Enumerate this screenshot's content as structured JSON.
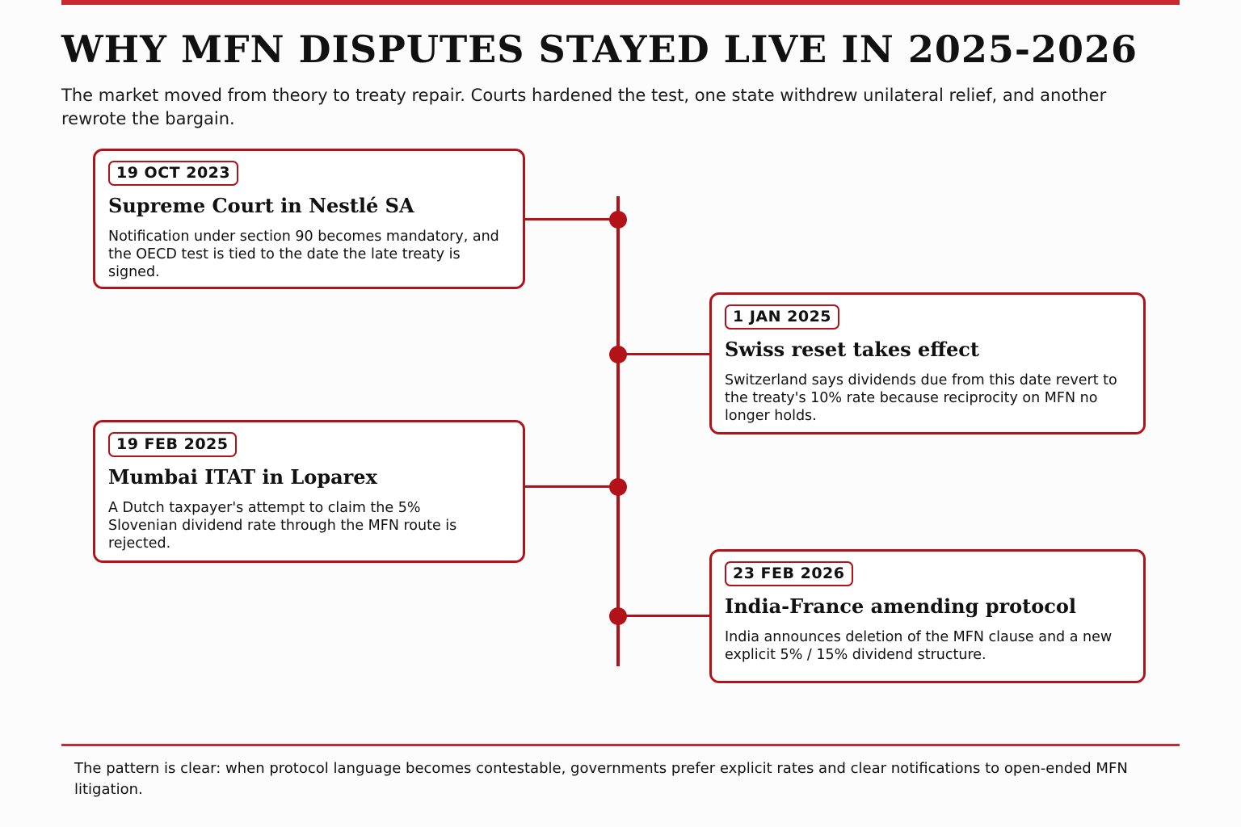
{
  "header": {
    "title": "WHY MFN DISPUTES STAYED LIVE IN 2025-2026",
    "subtitle": "The market moved from theory to treaty repair. Courts hardened the test, one state withdrew unilateral relief, and another rewrote the bargain."
  },
  "colors": {
    "accent": "#b31219",
    "rule": "#c8282f"
  },
  "timeline": {
    "events": [
      {
        "date": "19 OCT 2023",
        "title": "Supreme Court in Nestlé SA",
        "body": "Notification under section 90 becomes mandatory, and the OECD test is tied to the date the late treaty is signed."
      },
      {
        "date": "1 JAN 2025",
        "title": "Swiss reset takes effect",
        "body": "Switzerland says dividends due from this date revert to the treaty's 10% rate because reciprocity on MFN no longer holds."
      },
      {
        "date": "19 FEB 2025",
        "title": "Mumbai ITAT in Loparex",
        "body": "A Dutch taxpayer's attempt to claim the 5% Slovenian dividend rate through the MFN route is rejected."
      },
      {
        "date": "23 FEB 2026",
        "title": "India-France amending protocol",
        "body": "India announces deletion of the MFN clause and a new explicit 5% / 15% dividend structure."
      }
    ]
  },
  "footer": {
    "note": "The pattern is clear: when protocol language becomes contestable, governments prefer explicit rates and clear notifications to open-ended MFN litigation."
  }
}
